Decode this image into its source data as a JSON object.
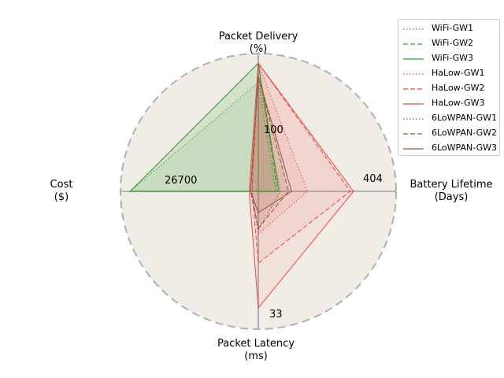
{
  "chart_data": {
    "type": "radar",
    "axes": [
      {
        "key": "delivery",
        "label_lines": [
          "Packet Delivery",
          "(%)"
        ],
        "max": 100,
        "max_label": "100"
      },
      {
        "key": "battery",
        "label_lines": [
          "Battery Lifetime",
          "(Days)"
        ],
        "max": 404,
        "max_label": "404"
      },
      {
        "key": "latency",
        "label_lines": [
          "Packet Latency",
          "(ms)"
        ],
        "max": 33,
        "max_label": "33"
      },
      {
        "key": "cost",
        "label_lines": [
          "Cost",
          "($)"
        ],
        "max": 26700,
        "max_label": "26700"
      }
    ],
    "series": [
      {
        "name": "WiFi-GW1",
        "color": "#2ca02c",
        "dash": "dotted",
        "values": {
          "delivery": 85,
          "battery": 55,
          "latency": 0,
          "cost": 26700
        }
      },
      {
        "name": "WiFi-GW2",
        "color": "#2ca02c",
        "dash": "dashed",
        "values": {
          "delivery": 100,
          "battery": 60,
          "latency": 0,
          "cost": 26700
        }
      },
      {
        "name": "WiFi-GW3",
        "color": "#2ca02c",
        "dash": "solid",
        "values": {
          "delivery": 100,
          "battery": 65,
          "latency": 0,
          "cost": 26700
        }
      },
      {
        "name": "HaLow-GW1",
        "color": "#ef4444",
        "dash": "dotted",
        "values": {
          "delivery": 100,
          "battery": 155,
          "latency": 11,
          "cost": 1300
        }
      },
      {
        "name": "HaLow-GW2",
        "color": "#ef4444",
        "dash": "dashed",
        "values": {
          "delivery": 100,
          "battery": 290,
          "latency": 18.5,
          "cost": 1300
        }
      },
      {
        "name": "HaLow-GW3",
        "color": "#ef4444",
        "dash": "solid",
        "values": {
          "delivery": 100,
          "battery": 300,
          "latency": 30,
          "cost": 1900
        }
      },
      {
        "name": "6LoWPAN-GW1",
        "color": "#8c5a3c",
        "dash": "dotted",
        "values": {
          "delivery": 90,
          "battery": 70,
          "latency": 10,
          "cost": 1600
        }
      },
      {
        "name": "6LoWPAN-GW2",
        "color": "#8c5a3c",
        "dash": "dashed",
        "values": {
          "delivery": 90,
          "battery": 95,
          "latency": 9.5,
          "cost": 1600
        }
      },
      {
        "name": "6LoWPAN-GW3",
        "color": "#8c5a3c",
        "dash": "solid",
        "values": {
          "delivery": 90,
          "battery": 105,
          "latency": 5.5,
          "cost": 1600
        }
      }
    ],
    "background_color": "#f0ede6",
    "grid": false,
    "legend_position": "upper-right"
  }
}
